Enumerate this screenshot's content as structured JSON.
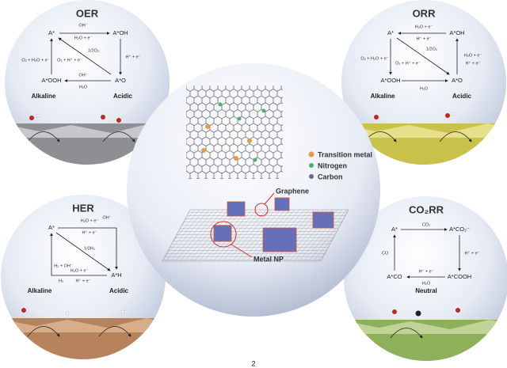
{
  "panels": [
    {
      "title": "OER",
      "states": [
        "A*",
        "A*OH",
        "A*O",
        "A*OOH"
      ],
      "steps": [
        "OH⁻",
        "H₂O + e⁻",
        "H⁺ + e⁻",
        "1/2O₂",
        "O₂ + H₂O + e⁻",
        "O₂ + H⁺ + e⁻",
        "OH⁻",
        "H₂O"
      ],
      "conditions": [
        "Alkaline",
        "Acidic"
      ]
    },
    {
      "title": "ORR",
      "states": [
        "A*",
        "A*OH",
        "A*O",
        "A*OOH"
      ],
      "steps": [
        "H₂O + e⁻",
        "H⁺ + e⁻",
        "1/2O₂",
        "O₂ + H₂O + e⁻",
        "O₂ + H⁺ + e⁻",
        "H₂O + e⁻",
        "H⁺ + e⁻",
        "H₂O"
      ],
      "conditions": [
        "Alkaline",
        "Acidic"
      ]
    },
    {
      "title": "HER",
      "states": [
        "A*",
        "A*H"
      ],
      "steps": [
        "H₂O + e⁻",
        "OH⁻",
        "H⁺ + e⁻",
        "1/2H₂",
        "H₂ + OH⁻",
        "H₂O + e⁻",
        "H₂",
        "H⁺ + e⁻"
      ],
      "conditions": [
        "Alkaline",
        "Acidic"
      ]
    },
    {
      "title": "CO₂RR",
      "states": [
        "A*",
        "A*CO₂⁻",
        "A*COOH",
        "A*CO"
      ],
      "steps": [
        "CO₂",
        "H⁺ + e⁻",
        "CO",
        "H⁺ + e⁻",
        "H₂O"
      ],
      "conditions": [
        "Neutral"
      ]
    }
  ],
  "center": {
    "legend": [
      "Transition metal",
      "Nitrogen",
      "Carbon"
    ],
    "labels": [
      "Graphene",
      "Metal NP"
    ]
  },
  "footer": "2"
}
